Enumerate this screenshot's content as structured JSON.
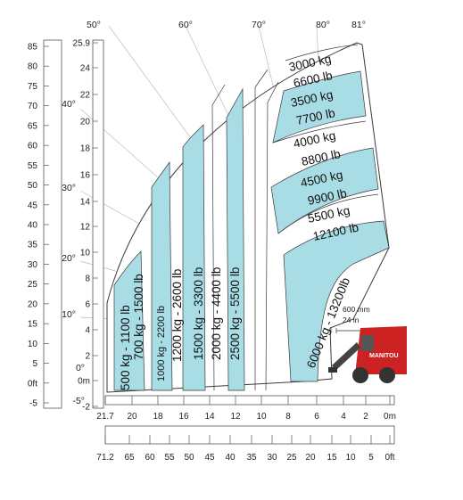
{
  "angle_labels_top": [
    "50°",
    "60°",
    "70°",
    "80°",
    "81°"
  ],
  "angle_labels_left": [
    "40°",
    "30°",
    "20°",
    "10°",
    "0°",
    "-5°"
  ],
  "left_scale_ft": [
    "85",
    "80",
    "75",
    "70",
    "65",
    "60",
    "55",
    "50",
    "45",
    "40",
    "35",
    "30",
    "25",
    "20",
    "15",
    "10",
    "5",
    "0ft",
    "-5"
  ],
  "left_scale_m": [
    "25.9",
    "24",
    "22",
    "20",
    "18",
    "16",
    "14",
    "12",
    "10",
    "8",
    "6",
    "4",
    "2",
    "0m",
    "-2"
  ],
  "bottom_scale_m": [
    "21.7",
    "20",
    "18",
    "16",
    "14",
    "12",
    "10",
    "8",
    "6",
    "4",
    "2",
    "0m"
  ],
  "bottom_scale_ft": [
    "71.2",
    "65",
    "60",
    "55",
    "50",
    "45",
    "40",
    "35",
    "30",
    "25",
    "20",
    "15",
    "10",
    "5",
    "0ft"
  ],
  "vertical_zones": [
    {
      "label": "500 kg - 1100 lb",
      "shaded": true
    },
    {
      "label": "700 kg - 1500 lb",
      "shaded": false
    },
    {
      "label": "1000 kg - 2200 lb",
      "shaded": true
    },
    {
      "label": "1200 kg - 2600 lb",
      "shaded": false
    },
    {
      "label": "1500 kg - 3300 lb",
      "shaded": true
    },
    {
      "label": "2000 kg - 4400 lb",
      "shaded": false
    },
    {
      "label": "2500 kg - 5500 lb",
      "shaded": true
    }
  ],
  "capacity_zones": [
    {
      "kg": "3000 kg",
      "lb": "6600 lb",
      "shaded": false
    },
    {
      "kg": "3500 kg",
      "lb": "7700 lb",
      "shaded": true
    },
    {
      "kg": "4000 kg",
      "lb": "8800 lb",
      "shaded": false
    },
    {
      "kg": "4500 kg",
      "lb": "9900 lb",
      "shaded": true
    },
    {
      "kg": "5500 kg",
      "lb": "12100 lb",
      "shaded": false
    }
  ],
  "curved_zone_label": "6000 kg - 13200lb",
  "dimension": {
    "mm": "600 mm",
    "in": "24 in"
  },
  "colors": {
    "shade": "#a9dde6",
    "line": "#3a3a3a",
    "machine_red": "#cc2222"
  }
}
